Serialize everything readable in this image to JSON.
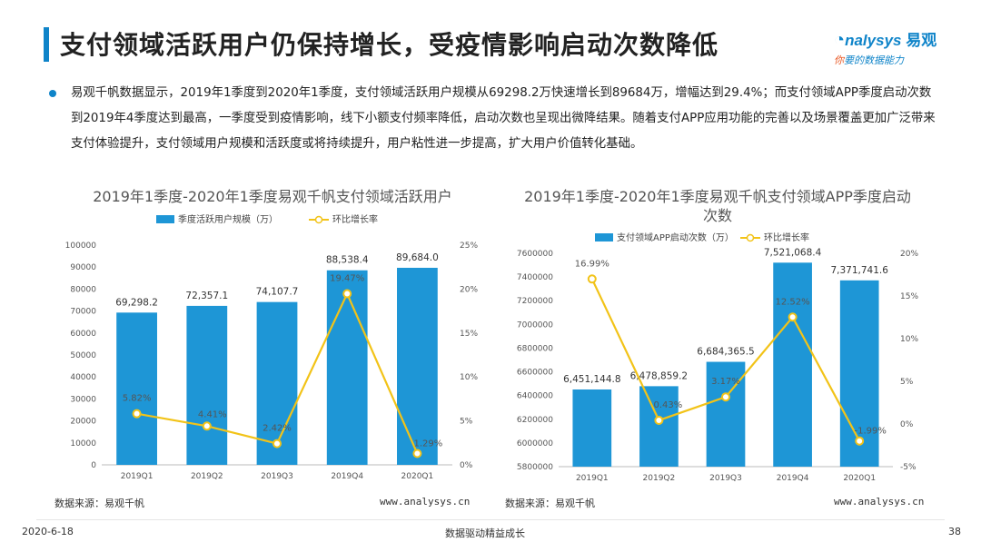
{
  "header": {
    "title": "支付领域活跃用户仍保持增长，受疫情影响启动次数降低",
    "logo_main": "nalysys",
    "logo_cn": "易观",
    "logo_sub_highlight": "你",
    "logo_sub": "要的数据能力"
  },
  "body": {
    "paragraph": "易观千帆数据显示，2019年1季度到2020年1季度，支付领域活跃用户规模从69298.2万快速增长到89684万，增幅达到29.4%；而支付领域APP季度启动次数到2019年4季度达到最高，一季度受到疫情影响，线下小额支付频率降低，启动次数也呈现出微降结果。随着支付APP应用功能的完善以及场景覆盖更加广泛带来支付体验提升，支付领域用户规模和活跃度或将持续提升，用户粘性进一步提高，扩大用户价值转化基础。"
  },
  "left_chart": {
    "source": "数据来源：易观千帆",
    "url": "www.analysys.cn"
  },
  "right_chart": {
    "source": "数据来源：易观千帆",
    "url": "www.analysys.cn"
  },
  "footer": {
    "date": "2020-6-18",
    "center": "数据驱动精益成长",
    "page": "38"
  },
  "colors": {
    "bar": "#1e96d6",
    "line": "#f2c318",
    "accent": "#0f84c9"
  },
  "chart_data": [
    {
      "type": "bar",
      "title": "2019年1季度-2020年1季度易观千帆支付领域活跃用户",
      "categories": [
        "2019Q1",
        "2019Q2",
        "2019Q3",
        "2019Q4",
        "2020Q1"
      ],
      "series": [
        {
          "name": "季度活跃用户规模（万）",
          "type": "bar",
          "axis": "left",
          "values": [
            69298.2,
            72357.1,
            74107.7,
            88538.4,
            89684.0
          ],
          "labels": [
            "69,298.2",
            "72,357.1",
            "74,107.7",
            "88,538.4",
            "89,684.0"
          ]
        },
        {
          "name": "环比增长率",
          "type": "line",
          "axis": "right",
          "values": [
            5.82,
            4.41,
            2.42,
            19.47,
            1.29
          ],
          "labels": [
            "5.82%",
            "4.41%",
            "2.42%",
            "19.47%",
            "1.29%"
          ]
        }
      ],
      "ylim_left": [
        0,
        100000
      ],
      "yticks_left": [
        "0",
        "10000",
        "20000",
        "30000",
        "40000",
        "50000",
        "60000",
        "70000",
        "80000",
        "90000",
        "100000"
      ],
      "ylim_right": [
        0,
        25
      ],
      "yticks_right": [
        "0%",
        "5%",
        "10%",
        "15%",
        "20%",
        "25%"
      ],
      "legend": "top"
    },
    {
      "type": "bar",
      "title": "2019年1季度-2020年1季度易观千帆支付领域APP季度启动次数",
      "categories": [
        "2019Q1",
        "2019Q2",
        "2019Q3",
        "2019Q4",
        "2020Q1"
      ],
      "series": [
        {
          "name": "支付领域APP启动次数（万）",
          "type": "bar",
          "axis": "left",
          "values": [
            6451144.8,
            6478859.2,
            6684365.5,
            7521068.4,
            7371741.6
          ],
          "labels": [
            "6,451,144.8",
            "6,478,859.2",
            "6,684,365.5",
            "7,521,068.4",
            "7,371,741.6"
          ]
        },
        {
          "name": "环比增长率",
          "type": "line",
          "axis": "right",
          "values": [
            16.99,
            0.43,
            3.17,
            12.52,
            -1.99
          ],
          "labels": [
            "16.99%",
            "0.43%",
            "3.17%",
            "12.52%",
            "-1.99%"
          ]
        }
      ],
      "ylim_left": [
        5800000,
        7600000
      ],
      "yticks_left": [
        "5800000",
        "6000000",
        "6200000",
        "6400000",
        "6600000",
        "6800000",
        "7000000",
        "7200000",
        "7400000",
        "7600000"
      ],
      "ylim_right": [
        -5,
        20
      ],
      "yticks_right": [
        "-5%",
        "0%",
        "5%",
        "10%",
        "15%",
        "20%"
      ],
      "legend": "top"
    }
  ]
}
